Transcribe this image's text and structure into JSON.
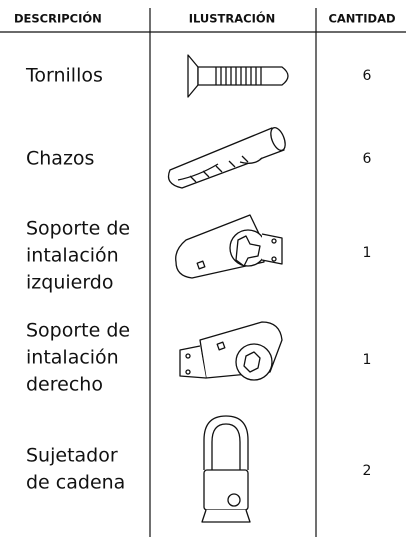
{
  "table": {
    "headers": [
      "DESCRIPCIÓN",
      "ILUSTRACIÓN",
      "CANTIDAD"
    ],
    "rows": [
      {
        "description": [
          "Tornillos"
        ],
        "quantity": 6
      },
      {
        "description": [
          "Chazos"
        ],
        "quantity": 6
      },
      {
        "description": [
          "Soporte de",
          "intalación",
          "izquierdo"
        ],
        "quantity": 1
      },
      {
        "description": [
          "Soporte de",
          "intalación",
          "derecho"
        ],
        "quantity": 1
      },
      {
        "description": [
          "Sujetador",
          "de cadena"
        ],
        "quantity": 2
      }
    ]
  }
}
